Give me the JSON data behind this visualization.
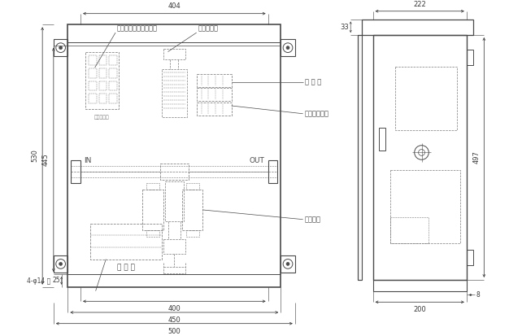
{
  "bg_color": "#ffffff",
  "lc": "#4a4a4a",
  "dc": "#7a7a7a",
  "dimc": "#3a3a3a",
  "fs": 6.0,
  "fs_lbl": 6.5,
  "labels": {
    "circuit_breaker": "サーキットブレーカー",
    "relay_terminal": "中継端子台",
    "contactor": "接 触 器",
    "air_heater": "空気圧ヒータ",
    "transformer": "トランス",
    "terminal": "端 子 台",
    "in": "IN",
    "out": "OUT",
    "hole": "4-φ14 穴"
  },
  "dims_front": {
    "d404": "404",
    "d530": "530",
    "d445": "445",
    "d25": "25",
    "d400": "400",
    "d450": "450",
    "d500": "500"
  },
  "dims_side": {
    "d222": "222",
    "d33": "33",
    "d497": "497",
    "d200": "200",
    "d8": "8"
  }
}
